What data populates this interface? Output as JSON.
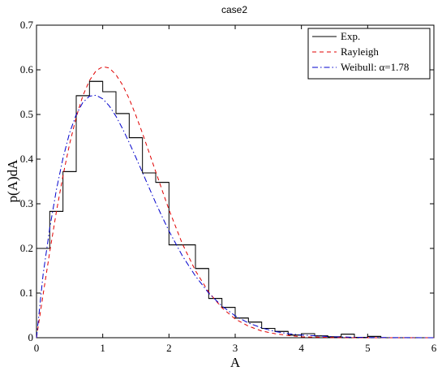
{
  "chart_data": {
    "type": "line",
    "title": "case2",
    "xlabel": "A",
    "ylabel": "p(A)dA",
    "xlim": [
      0,
      6
    ],
    "ylim": [
      0,
      0.7
    ],
    "xticks": [
      "0",
      "1",
      "2",
      "3",
      "4",
      "5",
      "6"
    ],
    "yticks": [
      "0",
      "0.1",
      "0.2",
      "0.3",
      "0.4",
      "0.5",
      "0.6",
      "0.7"
    ],
    "grid": false,
    "legend_position": "top-right",
    "series": [
      {
        "name": "Exp.",
        "kind": "histogram",
        "color": "#000000",
        "style": "solid",
        "bin_edges": [
          0,
          0.2,
          0.4,
          0.6,
          0.8,
          1.0,
          1.2,
          1.4,
          1.6,
          1.8,
          2.0,
          2.2,
          2.4,
          2.6,
          2.8,
          3.0,
          3.2,
          3.4,
          3.6,
          3.8,
          4.0,
          4.2,
          4.4,
          4.6,
          4.8,
          5.0,
          5.2
        ],
        "values": [
          0.2,
          0.283,
          0.372,
          0.542,
          0.574,
          0.551,
          0.502,
          0.448,
          0.369,
          0.348,
          0.208,
          0.208,
          0.155,
          0.088,
          0.068,
          0.044,
          0.035,
          0.021,
          0.014,
          0.006,
          0.009,
          0.004,
          0.002,
          0.008,
          0.001,
          0.003
        ]
      },
      {
        "name": "Rayleigh",
        "kind": "curve",
        "color": "#e00000",
        "style": "dashed",
        "x": [
          0,
          0.1,
          0.2,
          0.3,
          0.4,
          0.5,
          0.6,
          0.7,
          0.8,
          0.9,
          1.0,
          1.1,
          1.2,
          1.3,
          1.4,
          1.5,
          1.6,
          1.7,
          1.8,
          1.9,
          2.0,
          2.2,
          2.4,
          2.6,
          2.8,
          3.0,
          3.2,
          3.4,
          3.6,
          3.8,
          4.0,
          4.5,
          5.0,
          6.0
        ],
        "y": [
          0,
          0.097,
          0.192,
          0.282,
          0.363,
          0.434,
          0.494,
          0.542,
          0.576,
          0.598,
          0.607,
          0.604,
          0.589,
          0.566,
          0.535,
          0.498,
          0.458,
          0.415,
          0.372,
          0.329,
          0.287,
          0.211,
          0.15,
          0.102,
          0.067,
          0.042,
          0.026,
          0.015,
          0.009,
          0.005,
          0.002,
          0.0003,
          0.0,
          0.0
        ]
      },
      {
        "name": "Weibull:",
        "label_extra": "α=1.78",
        "kind": "curve",
        "color": "#0000cc",
        "style": "dashdot",
        "x": [
          0,
          0.1,
          0.2,
          0.3,
          0.4,
          0.5,
          0.6,
          0.7,
          0.8,
          0.9,
          1.0,
          1.1,
          1.2,
          1.3,
          1.4,
          1.5,
          1.6,
          1.7,
          1.8,
          1.9,
          2.0,
          2.2,
          2.4,
          2.6,
          2.8,
          3.0,
          3.2,
          3.4,
          3.6,
          3.8,
          4.0,
          4.5,
          5.0,
          6.0
        ],
        "y": [
          0,
          0.142,
          0.245,
          0.331,
          0.402,
          0.459,
          0.5,
          0.527,
          0.541,
          0.543,
          0.535,
          0.519,
          0.496,
          0.468,
          0.437,
          0.404,
          0.37,
          0.336,
          0.302,
          0.27,
          0.239,
          0.184,
          0.138,
          0.1,
          0.071,
          0.049,
          0.033,
          0.022,
          0.014,
          0.009,
          0.006,
          0.002,
          0.0005,
          0.0
        ]
      }
    ]
  }
}
